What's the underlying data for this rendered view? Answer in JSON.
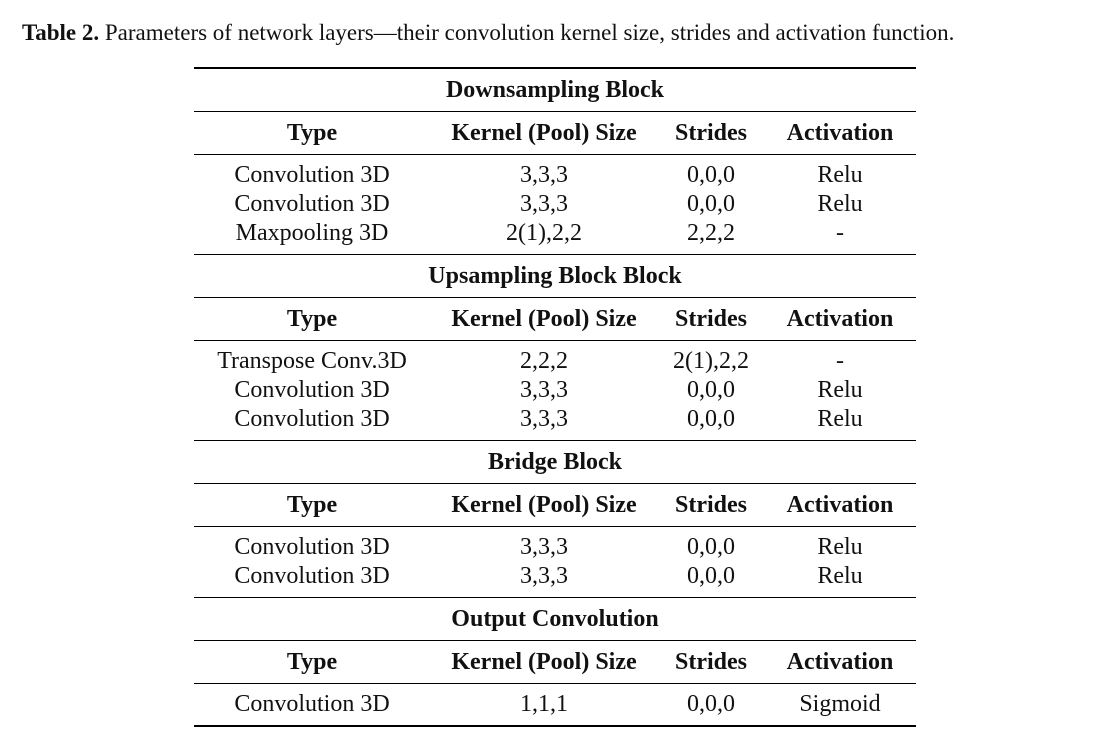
{
  "caption": {
    "label": "Table 2.",
    "text": "Parameters of network layers—their convolution kernel size, strides and activation function."
  },
  "columns": [
    "Type",
    "Kernel (Pool) Size",
    "Strides",
    "Activation"
  ],
  "sections": [
    {
      "title": "Downsampling Block",
      "rows": [
        [
          "Convolution 3D",
          "3,3,3",
          "0,0,0",
          "Relu"
        ],
        [
          "Convolution 3D",
          "3,3,3",
          "0,0,0",
          "Relu"
        ],
        [
          "Maxpooling 3D",
          "2(1),2,2",
          "2,2,2",
          "-"
        ]
      ]
    },
    {
      "title": "Upsampling Block Block",
      "rows": [
        [
          "Transpose Conv.3D",
          "2,2,2",
          "2(1),2,2",
          "-"
        ],
        [
          "Convolution 3D",
          "3,3,3",
          "0,0,0",
          "Relu"
        ],
        [
          "Convolution 3D",
          "3,3,3",
          "0,0,0",
          "Relu"
        ]
      ]
    },
    {
      "title": "Bridge Block",
      "rows": [
        [
          "Convolution 3D",
          "3,3,3",
          "0,0,0",
          "Relu"
        ],
        [
          "Convolution 3D",
          "3,3,3",
          "0,0,0",
          "Relu"
        ]
      ]
    },
    {
      "title": "Output Convolution",
      "rows": [
        [
          "Convolution 3D",
          "1,1,1",
          "0,0,0",
          "Sigmoid"
        ]
      ]
    }
  ]
}
